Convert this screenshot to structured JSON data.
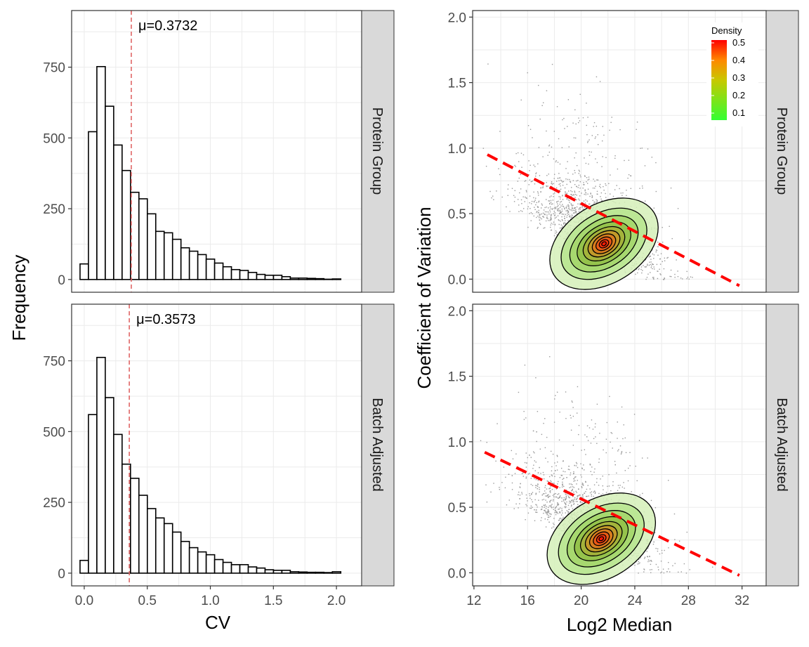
{
  "chart_data": [
    {
      "type": "histogram",
      "panel": "Protein Group",
      "xlabel": "CV",
      "ylabel": "Frequency",
      "xlim": [
        -0.1,
        2.2
      ],
      "ylim": [
        -45,
        950
      ],
      "xticks": [
        0.0,
        0.5,
        1.0,
        1.5,
        2.0
      ],
      "xtick_labels": [
        "0.0",
        "0.5",
        "1.0",
        "1.5",
        "2.0"
      ],
      "yticks": [
        0,
        250,
        500,
        750
      ],
      "ytick_labels": [
        "0",
        "250",
        "500",
        "750"
      ],
      "bin_width": 0.0667,
      "bin_start": -0.0333,
      "values": [
        55,
        522,
        752,
        612,
        475,
        385,
        308,
        285,
        232,
        170,
        165,
        142,
        112,
        100,
        88,
        72,
        58,
        45,
        35,
        32,
        25,
        18,
        15,
        15,
        10,
        5,
        5,
        4,
        3,
        1,
        2
      ],
      "mean": 0.3732,
      "mean_label": "μ=0.3732",
      "mean_line_color": "#e06666"
    },
    {
      "type": "histogram",
      "panel": "Batch Adjusted",
      "xlabel": "CV",
      "ylabel": "Frequency",
      "xlim": [
        -0.1,
        2.2
      ],
      "ylim": [
        -45,
        950
      ],
      "xticks": [
        0.0,
        0.5,
        1.0,
        1.5,
        2.0
      ],
      "xtick_labels": [
        "0.0",
        "0.5",
        "1.0",
        "1.5",
        "2.0"
      ],
      "yticks": [
        0,
        250,
        500,
        750
      ],
      "ytick_labels": [
        "0",
        "250",
        "500",
        "750"
      ],
      "bin_width": 0.0667,
      "bin_start": -0.0333,
      "values": [
        45,
        560,
        762,
        620,
        490,
        385,
        335,
        275,
        228,
        195,
        175,
        145,
        112,
        90,
        75,
        65,
        48,
        38,
        30,
        30,
        22,
        18,
        12,
        10,
        10,
        5,
        4,
        3,
        3,
        2,
        5
      ],
      "mean": 0.3573,
      "mean_label": "μ=0.3573",
      "mean_line_color": "#e06666"
    },
    {
      "type": "scatter_density",
      "panel": "Protein Group",
      "xlabel": "Log2 Median",
      "ylabel": "Coefficient of Variation",
      "xlim": [
        11.9,
        33.8
      ],
      "ylim": [
        -0.1,
        2.05
      ],
      "xticks": [
        12,
        16,
        20,
        24,
        28,
        32
      ],
      "xtick_labels": [
        "12",
        "16",
        "20",
        "24",
        "28",
        "32"
      ],
      "yticks": [
        0.0,
        0.5,
        1.0,
        1.5,
        2.0
      ],
      "ytick_labels": [
        "0.0",
        "0.5",
        "1.0",
        "1.5",
        "2.0"
      ],
      "density_peak": {
        "x": 22.2,
        "y": 0.15
      },
      "trend_line": {
        "x": [
          13.0,
          31.8
        ],
        "y": [
          0.95,
          -0.05
        ]
      },
      "legend": {
        "title": "Density",
        "values": [
          "0.5",
          "0.4",
          "0.3",
          "0.2",
          "0.1"
        ],
        "position": "top-right"
      }
    },
    {
      "type": "scatter_density",
      "panel": "Batch Adjusted",
      "xlabel": "Log2 Median",
      "ylabel": "Coefficient of Variation",
      "xlim": [
        11.9,
        33.8
      ],
      "ylim": [
        -0.1,
        2.05
      ],
      "xticks": [
        12,
        16,
        20,
        24,
        28,
        32
      ],
      "xtick_labels": [
        "12",
        "16",
        "20",
        "24",
        "28",
        "32"
      ],
      "yticks": [
        0.0,
        0.5,
        1.0,
        1.5,
        2.0
      ],
      "ytick_labels": [
        "0.0",
        "0.5",
        "1.0",
        "1.5",
        "2.0"
      ],
      "density_peak": {
        "x": 22.0,
        "y": 0.14
      },
      "trend_line": {
        "x": [
          12.8,
          31.8
        ],
        "y": [
          0.92,
          -0.02
        ]
      }
    }
  ],
  "labels": {
    "hist_xlabel": "CV",
    "hist_ylabel": "Frequency",
    "scatter_xlabel": "Log2 Median",
    "scatter_ylabel": "Coefficient of Variation",
    "strip_top": "Protein Group",
    "strip_bottom": "Batch Adjusted",
    "legend_title": "Density"
  },
  "colors": {
    "trend": "#ff0000",
    "points": "#9a9a9a",
    "strip_bg": "#d9d9d9",
    "grid": "#ebebeb",
    "density_low": "#33ff33",
    "density_high": "#ff0000"
  }
}
